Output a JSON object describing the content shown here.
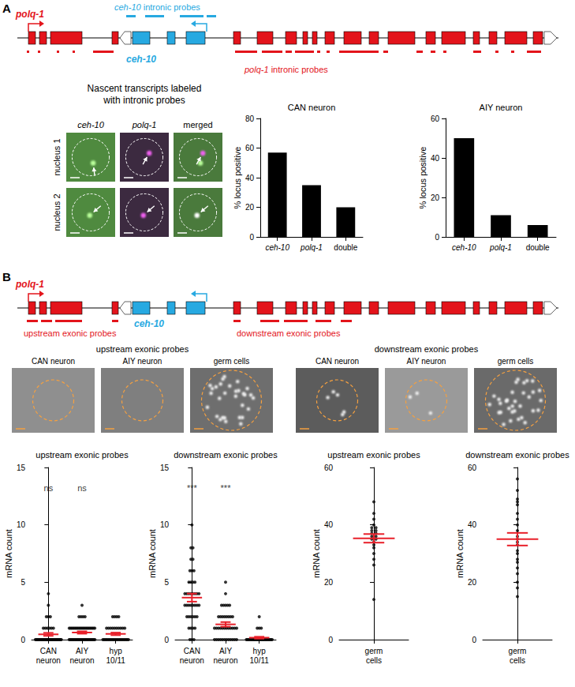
{
  "figure": {
    "panel_a": {
      "letter": "A",
      "genes": [
        {
          "name": "polq-1",
          "color": "#e3141b"
        },
        {
          "name": "ceh-10",
          "color": "#27a9e1"
        }
      ],
      "probe_labels": {
        "ceh-10": "ceh-10 intronic probes",
        "polq-1": "polq-1 intronic probes"
      },
      "images": {
        "title": "Nascent transcripts labeled with intronic probes",
        "columns": [
          "ceh-10",
          "polq-1",
          "merged"
        ],
        "rows": [
          "nucleus 1",
          "nucleus 2"
        ]
      }
    },
    "panel_b": {
      "letter": "B",
      "genes": [
        {
          "name": "polq-1",
          "color": "#e3141b"
        },
        {
          "name": "ceh-10",
          "color": "#27a9e1"
        }
      ],
      "probe_labels": {
        "upstream": "upstream exonic probes",
        "downstream": "downstream exonic probes"
      },
      "images": [
        {
          "title": "upstream exonic probes",
          "columns": [
            "CAN neuron",
            "AIY neuron",
            "germ cells"
          ]
        },
        {
          "title": "downstream exonic probes",
          "columns": [
            "CAN neuron",
            "AIY neuron",
            "germ cells"
          ]
        }
      ]
    }
  },
  "chart_data": [
    {
      "type": "bar",
      "title": "CAN neuron",
      "categories": [
        "ceh-10",
        "polq-1",
        "double"
      ],
      "values": [
        57,
        35,
        20
      ],
      "color": "#000000",
      "ylabel": "% locus positive",
      "ylim": [
        0,
        80
      ],
      "yticks": [
        0,
        20,
        40,
        60,
        80
      ],
      "grid": false
    },
    {
      "type": "bar",
      "title": "AIY neuron",
      "categories": [
        "ceh-10",
        "polq-1",
        "double"
      ],
      "values": [
        50,
        11,
        6
      ],
      "color": "#000000",
      "ylabel": "% locus positive",
      "ylim": [
        0,
        60
      ],
      "yticks": [
        0,
        20,
        40,
        60
      ],
      "grid": false
    },
    {
      "type": "scatter",
      "title": "upstream exonic probes",
      "categories": [
        "CAN neuron",
        "AIY neuron",
        "hyp 10/11"
      ],
      "values": [
        [
          0,
          0,
          0,
          0,
          0,
          0,
          0,
          0,
          0,
          0,
          0,
          0,
          0,
          0,
          0,
          0,
          0,
          0,
          0,
          0,
          0,
          0,
          0,
          0,
          0,
          0,
          0,
          0,
          0,
          0,
          1,
          1,
          1,
          1,
          1,
          1,
          2,
          2,
          2,
          3,
          4
        ],
        [
          0,
          0,
          0,
          0,
          0,
          0,
          0,
          0,
          0,
          0,
          0,
          0,
          0,
          0,
          0,
          0,
          0,
          0,
          0,
          0,
          0,
          0,
          0,
          0,
          0,
          1,
          1,
          1,
          1,
          1,
          1,
          1,
          1,
          1,
          1,
          1,
          1,
          1,
          1,
          1,
          1,
          1,
          1,
          1,
          1,
          2,
          2,
          2,
          2,
          3
        ],
        [
          0,
          0,
          0,
          0,
          0,
          0,
          0,
          0,
          0,
          0,
          0,
          0,
          0,
          0,
          0,
          0,
          0,
          0,
          0,
          0,
          0,
          0,
          1,
          1,
          1,
          1,
          1,
          1,
          1,
          1,
          1,
          1,
          2,
          2,
          2,
          2
        ]
      ],
      "mean": [
        0.46,
        0.62,
        0.5
      ],
      "sem": [
        0.13,
        0.1,
        0.11
      ],
      "significance": [
        "ns",
        "ns",
        null
      ],
      "color": "#000000",
      "ylabel": "mRNA count",
      "ylim": [
        0,
        15
      ],
      "yticks": [
        0,
        5,
        10,
        15
      ],
      "grid": false
    },
    {
      "type": "scatter",
      "title": "downstream exonic probes",
      "categories": [
        "CAN neuron",
        "AIY neuron",
        "hyp 10/11"
      ],
      "values": [
        [
          10,
          8,
          8,
          7,
          7,
          6,
          6,
          6,
          5,
          5,
          5,
          5,
          4,
          4,
          4,
          4,
          4,
          4,
          4,
          4,
          3,
          3,
          3,
          3,
          3,
          3,
          3,
          3,
          2,
          2,
          2,
          2,
          2,
          2,
          1,
          1,
          1,
          1,
          0,
          0,
          0
        ],
        [
          5,
          4,
          3,
          3,
          3,
          3,
          3,
          2,
          2,
          2,
          2,
          2,
          2,
          2,
          2,
          1,
          1,
          1,
          1,
          1,
          1,
          1,
          1,
          1,
          1,
          1,
          1,
          0,
          0,
          0,
          0,
          0,
          0,
          0,
          0,
          0,
          0,
          0,
          0
        ],
        [
          2,
          1,
          1,
          1,
          0,
          0,
          0,
          0,
          0,
          0,
          0,
          0,
          0,
          0,
          0,
          0,
          0,
          0,
          0,
          0,
          0,
          0,
          0,
          0,
          0,
          0,
          0,
          0,
          0
        ]
      ],
      "mean": [
        3.66,
        1.33,
        0.17
      ],
      "sem": [
        0.35,
        0.2,
        0.08
      ],
      "significance": [
        "***",
        "***",
        null
      ],
      "color": "#000000",
      "ylabel": "mRNA count",
      "ylim": [
        0,
        15
      ],
      "yticks": [
        0,
        5,
        10,
        15
      ],
      "grid": false
    },
    {
      "type": "scatter",
      "title": "upstream exonic probes",
      "categories": [
        "germ cells"
      ],
      "values": [
        [
          48,
          44,
          42,
          40,
          39,
          39,
          38,
          38,
          37,
          37,
          36,
          36,
          35,
          35,
          34,
          33,
          32,
          30,
          28,
          26,
          14
        ]
      ],
      "mean": [
        35.3
      ],
      "sem": [
        1.5
      ],
      "color": "#000000",
      "ylabel": "mRNA count",
      "ylim": [
        0,
        60
      ],
      "yticks": [
        0,
        20,
        40,
        60
      ],
      "grid": false
    },
    {
      "type": "scatter",
      "title": "downstream exonic probes",
      "categories": [
        "germ cells"
      ],
      "values": [
        [
          56,
          52,
          49,
          48,
          47,
          44,
          42,
          40,
          38,
          36,
          35,
          34,
          33,
          31,
          30,
          28,
          27,
          25,
          23,
          20,
          18,
          15
        ]
      ],
      "mean": [
        35.0
      ],
      "sem": [
        2.2
      ],
      "color": "#000000",
      "ylabel": "mRNA count",
      "ylim": [
        0,
        60
      ],
      "yticks": [
        0,
        20,
        40,
        60
      ],
      "grid": false
    }
  ]
}
